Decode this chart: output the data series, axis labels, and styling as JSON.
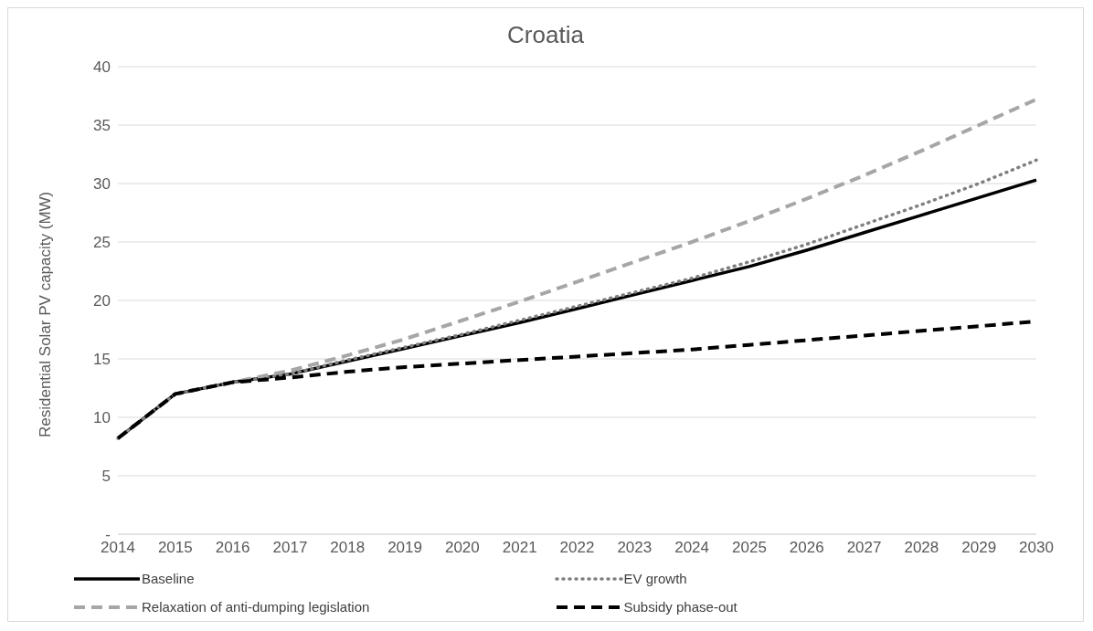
{
  "chart_data": {
    "type": "line",
    "title": "Croatia",
    "ylabel": "Residential Solar PV capacity (MW)",
    "categories": [
      "2014",
      "2015",
      "2016",
      "2017",
      "2018",
      "2019",
      "2020",
      "2021",
      "2022",
      "2023",
      "2024",
      "2025",
      "2026",
      "2027",
      "2028",
      "2029",
      "2030"
    ],
    "ylim": [
      0,
      40
    ],
    "yticks": [
      {
        "value": 0,
        "label": "-"
      },
      5,
      10,
      15,
      20,
      25,
      30,
      35,
      40
    ],
    "grid": "y",
    "legend": "bottom",
    "marker": "none",
    "series": [
      {
        "name": "Baseline",
        "color": "#000000",
        "line_style": "solid",
        "values": [
          8.2,
          12,
          13,
          13.7,
          14.8,
          15.9,
          17,
          18.1,
          19.3,
          20.5,
          21.7,
          22.9,
          24.3,
          25.8,
          27.3,
          28.8,
          30.3
        ]
      },
      {
        "name": "EV growth",
        "color": "#7f7f7f",
        "line_style": "dotted",
        "values": [
          8.2,
          12,
          13,
          13.7,
          14.9,
          16,
          17.1,
          18.3,
          19.5,
          20.7,
          21.9,
          23.3,
          24.8,
          26.5,
          28.2,
          30,
          32
        ]
      },
      {
        "name": "Relaxation of anti-dumping legislation",
        "color": "#a6a6a6",
        "line_style": "dashed",
        "values": [
          8.2,
          12,
          13,
          14,
          15.3,
          16.7,
          18.3,
          19.9,
          21.6,
          23.3,
          25,
          26.8,
          28.7,
          30.7,
          32.8,
          35,
          37.2
        ]
      },
      {
        "name": "Subsidy phase-out",
        "color": "#000000",
        "line_style": "dashed",
        "values": [
          8.2,
          12,
          13,
          13.4,
          13.9,
          14.3,
          14.6,
          14.9,
          15.2,
          15.5,
          15.8,
          16.2,
          16.6,
          17,
          17.4,
          17.8,
          18.2
        ]
      }
    ]
  }
}
